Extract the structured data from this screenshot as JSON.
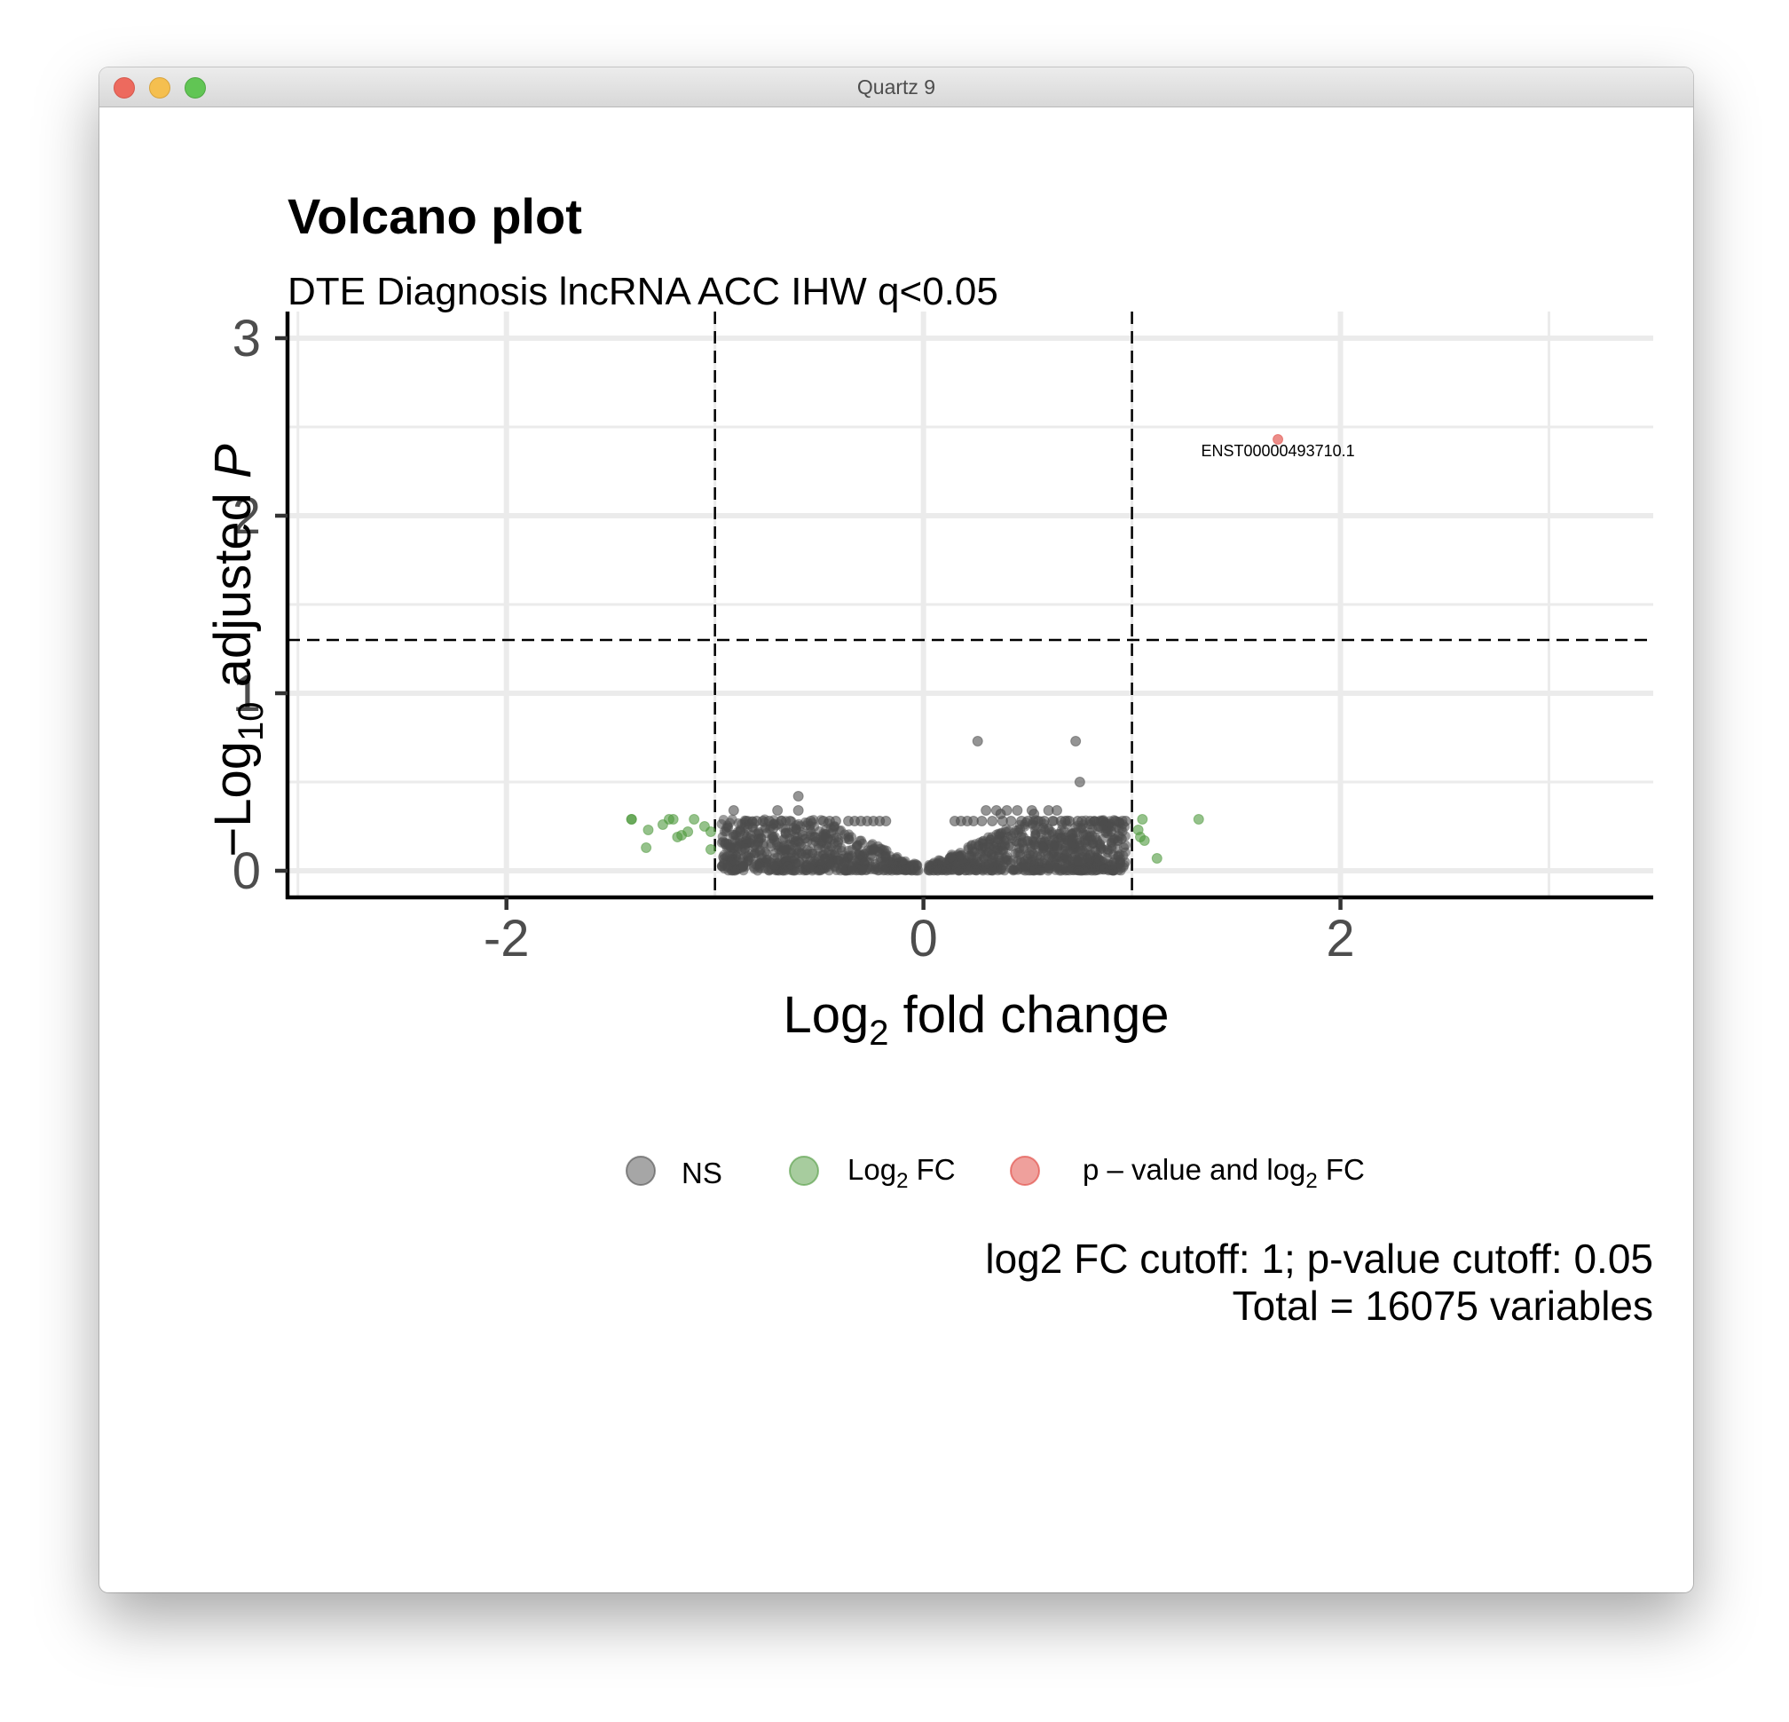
{
  "window": {
    "title": "Quartz 9"
  },
  "chart_data": {
    "type": "scatter",
    "title": "Volcano plot",
    "subtitle": "DTE Diagnosis lncRNA ACC IHW q<0.05",
    "xlabel": "Log2 fold change",
    "ylabel": "−Log10 adjusted P",
    "xlim": [
      -3.05,
      3.5
    ],
    "ylim": [
      -0.15,
      3.15
    ],
    "x_ticks": [
      -2,
      0,
      2
    ],
    "x_tick_labels": [
      "-2",
      "0",
      "2"
    ],
    "y_ticks": [
      0,
      1,
      2,
      3
    ],
    "y_tick_labels": [
      "0",
      "1",
      "2",
      "3"
    ],
    "grid": true,
    "cutoffs": {
      "log2fc": [
        -1,
        1
      ],
      "neg_log10_p": 1.3
    },
    "legend_position": "bottom",
    "legend": [
      {
        "label": "NS",
        "color": "#4d4d4d"
      },
      {
        "label": "Log2 FC",
        "color": "#4f9a3e"
      },
      {
        "label": "p – value and log2 FC",
        "color": "#e0413a"
      }
    ],
    "caption": [
      "log2 FC cutoff: 1; p-value cutoff: 0.05",
      "Total = 16075 variables"
    ],
    "series": [
      {
        "name": "NS",
        "color": "#4d4d4d",
        "x": [
          0.26,
          0.73,
          0.75,
          -0.6,
          -0.91,
          -0.7,
          -0.6,
          -0.54,
          -0.48,
          -0.45,
          -0.42,
          -0.36,
          -0.33,
          -0.3,
          -0.27,
          -0.24,
          -0.21,
          -0.18,
          -0.85,
          -0.8,
          -0.77,
          -0.74,
          -0.68,
          -0.64,
          -0.88,
          -0.95,
          -0.83,
          -0.72,
          -0.66,
          -0.58,
          -0.52,
          -0.46,
          0.3,
          0.35,
          0.37,
          0.4,
          0.45,
          0.52,
          0.53,
          0.6,
          0.64,
          0.68,
          0.74,
          0.8,
          0.86,
          0.92,
          0.97,
          0.15,
          0.18,
          0.21,
          0.24,
          0.28,
          0.33,
          0.38,
          0.42,
          0.47,
          0.5,
          0.55,
          0.58,
          0.62,
          0.66,
          0.7,
          0.76,
          0.82,
          0.9,
          0.95,
          0.78,
          0.84
        ],
        "y": [
          0.73,
          0.73,
          0.5,
          0.42,
          0.34,
          0.34,
          0.34,
          0.28,
          0.28,
          0.28,
          0.28,
          0.28,
          0.28,
          0.28,
          0.28,
          0.28,
          0.28,
          0.28,
          0.28,
          0.28,
          0.28,
          0.28,
          0.28,
          0.28,
          0.22,
          0.15,
          0.18,
          0.24,
          0.21,
          0.2,
          0.19,
          0.18,
          0.34,
          0.34,
          0.32,
          0.34,
          0.34,
          0.34,
          0.32,
          0.34,
          0.34,
          0.28,
          0.28,
          0.28,
          0.28,
          0.28,
          0.28,
          0.28,
          0.28,
          0.28,
          0.28,
          0.28,
          0.28,
          0.28,
          0.28,
          0.28,
          0.28,
          0.28,
          0.28,
          0.28,
          0.28,
          0.28,
          0.28,
          0.28,
          0.22,
          0.18,
          0.2,
          0.25
        ]
      },
      {
        "name": "Log2 FC",
        "color": "#4f9a3e",
        "x": [
          -1.4,
          -1.4,
          -1.32,
          -1.25,
          -1.22,
          -1.18,
          -1.16,
          -1.13,
          -1.1,
          -1.05,
          -1.02,
          -1.02,
          -1.33,
          -1.2,
          1.03,
          1.05,
          1.04,
          1.06,
          1.12,
          1.32
        ],
        "y": [
          0.29,
          0.29,
          0.23,
          0.26,
          0.29,
          0.19,
          0.2,
          0.22,
          0.29,
          0.25,
          0.22,
          0.12,
          0.13,
          0.29,
          0.23,
          0.29,
          0.19,
          0.17,
          0.07,
          0.29
        ]
      },
      {
        "name": "p – value and log2 FC",
        "color": "#e0413a",
        "x": [
          1.7
        ],
        "y": [
          2.43
        ],
        "labels": [
          "ENST00000493710.1"
        ]
      }
    ]
  }
}
